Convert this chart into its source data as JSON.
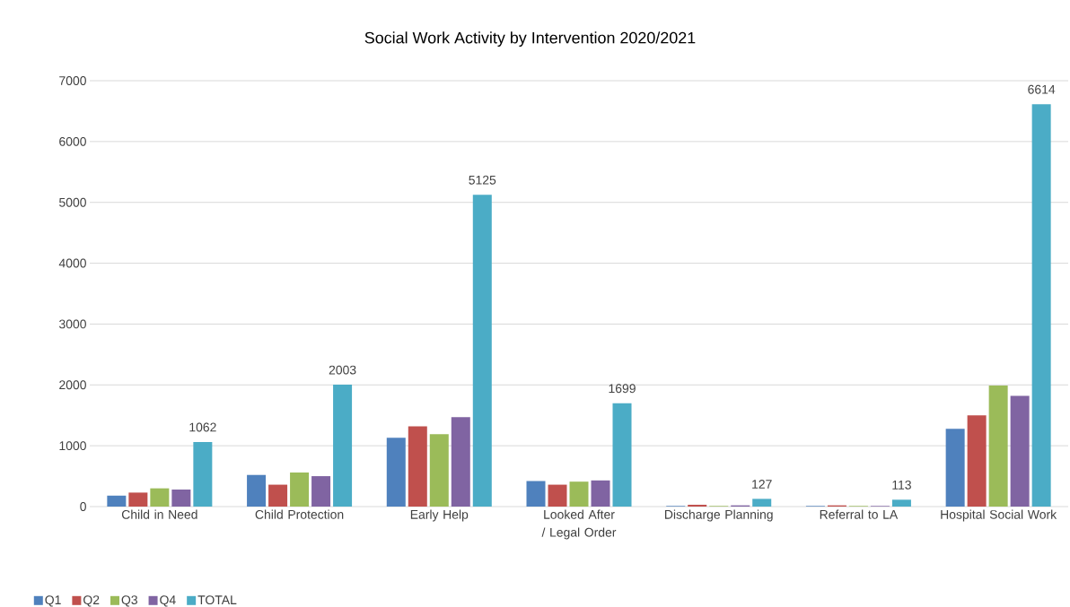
{
  "chart_data": {
    "type": "bar",
    "title": "Social Work Activity by Intervention 2020/2021",
    "categories": [
      "Child in Need",
      "Child Protection",
      "Early Help",
      "Looked After / Legal Order",
      "Discharge Planning",
      "Referral to LA",
      "Hospital Social Work"
    ],
    "series": [
      {
        "name": "Q1",
        "color": "#4f81bd",
        "values": [
          180,
          520,
          1130,
          420,
          10,
          10,
          1280
        ]
      },
      {
        "name": "Q2",
        "color": "#c0504d",
        "values": [
          230,
          360,
          1320,
          360,
          30,
          20,
          1500
        ]
      },
      {
        "name": "Q3",
        "color": "#9bbb59",
        "values": [
          300,
          560,
          1190,
          410,
          10,
          10,
          1990
        ]
      },
      {
        "name": "Q4",
        "color": "#8064a2",
        "values": [
          280,
          500,
          1470,
          430,
          20,
          10,
          1820
        ]
      },
      {
        "name": "TOTAL",
        "color": "#4bacc6",
        "values": [
          1062,
          2003,
          5125,
          1699,
          127,
          113,
          6614
        ],
        "value_labels": [
          "1062",
          "2003",
          "5125",
          "1699",
          "127",
          "113",
          "6614"
        ]
      }
    ],
    "ylim": [
      0,
      7000
    ],
    "yticks": [
      0,
      1000,
      2000,
      3000,
      4000,
      5000,
      6000,
      7000
    ],
    "grid": "y",
    "legend": "bottom left"
  }
}
